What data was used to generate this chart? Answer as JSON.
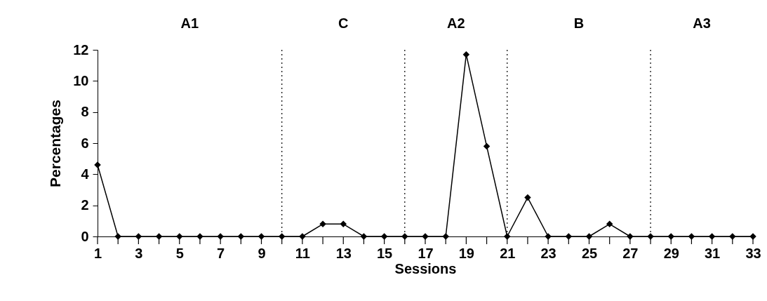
{
  "chart_data": {
    "type": "line",
    "xlabel": "Sessions",
    "ylabel": "Percentages",
    "x": [
      1,
      2,
      3,
      4,
      5,
      6,
      7,
      8,
      9,
      10,
      11,
      12,
      13,
      14,
      15,
      16,
      17,
      18,
      19,
      20,
      21,
      22,
      23,
      24,
      25,
      26,
      27,
      28,
      29,
      30,
      31,
      32,
      33
    ],
    "series": [
      {
        "color": "#000000",
        "values": [
          4.6,
          0,
          0,
          0,
          0,
          0,
          0,
          0,
          0,
          0,
          0,
          0.8,
          0.8,
          0,
          0,
          0,
          0,
          0,
          11.7,
          5.8,
          0,
          2.5,
          0,
          0,
          0,
          0.8,
          0,
          0,
          0,
          0,
          0,
          0,
          0
        ]
      }
    ],
    "xlim": [
      1,
      33
    ],
    "xticks": [
      1,
      {
        "value": 2,
        "label": null
      },
      3,
      {
        "value": 4,
        "label": null
      },
      5,
      {
        "value": 6,
        "label": null
      },
      7,
      {
        "value": 8,
        "label": null
      },
      9,
      {
        "value": 10,
        "label": null
      },
      11,
      {
        "value": 12,
        "label": null
      },
      13,
      {
        "value": 14,
        "label": null
      },
      15,
      {
        "value": 16,
        "label": null
      },
      17,
      {
        "value": 18,
        "label": null
      },
      19,
      {
        "value": 20,
        "label": null
      },
      21,
      {
        "value": 22,
        "label": null
      },
      23,
      {
        "value": 24,
        "label": null
      },
      25,
      {
        "value": 26,
        "label": null
      },
      27,
      {
        "value": 28,
        "label": null
      },
      29,
      {
        "value": 30,
        "label": null
      },
      31,
      {
        "value": 32,
        "label": null
      },
      33
    ],
    "ylim": [
      0,
      12
    ],
    "yticks": [
      0,
      2,
      4,
      6,
      8,
      10,
      12
    ],
    "ref_lines": [
      {
        "axis": "x",
        "value": 10,
        "line_style": "dotted"
      },
      {
        "axis": "x",
        "value": 16,
        "line_style": "dotted"
      },
      {
        "axis": "x",
        "value": 21,
        "line_style": "dotted"
      },
      {
        "axis": "x",
        "value": 28,
        "line_style": "dotted"
      }
    ],
    "annotations": [
      "A1",
      "C",
      "A2",
      "B",
      "A3"
    ],
    "grid": false,
    "legend": false,
    "marker": "diamond",
    "line_style": "solid"
  }
}
